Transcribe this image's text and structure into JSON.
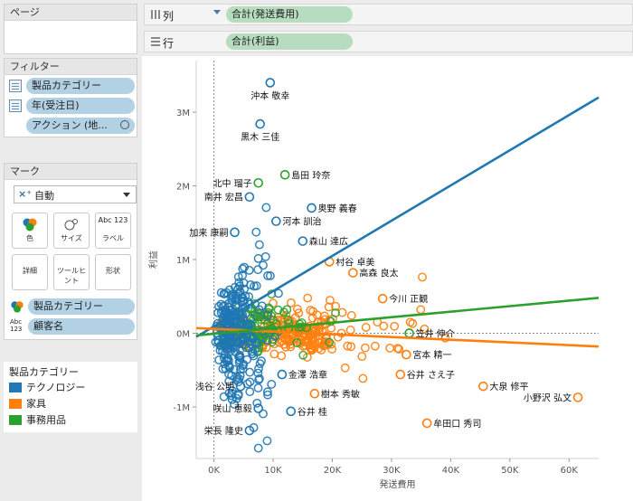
{
  "pages": {
    "title": "ページ"
  },
  "filters": {
    "title": "フィルター",
    "items": [
      {
        "label": "製品カテゴリー"
      },
      {
        "label": "年(受注日)"
      },
      {
        "label": "アクション (地..."
      }
    ]
  },
  "marks": {
    "title": "マーク",
    "mark_type": "自動",
    "buttons": [
      {
        "label": "色"
      },
      {
        "label": "サイズ"
      },
      {
        "label": "ラベル",
        "icon_text": "Abc 123"
      },
      {
        "label": "詳細"
      },
      {
        "label": "ツールヒント"
      },
      {
        "label": "形状"
      }
    ],
    "fields": [
      {
        "label": "製品カテゴリー"
      },
      {
        "label": "顧客名",
        "icon_text": "Abc 123"
      }
    ]
  },
  "legend": {
    "title": "製品カテゴリー",
    "items": [
      {
        "label": "テクノロジー",
        "color": "#1f77b4"
      },
      {
        "label": "家具",
        "color": "#ff7f0e"
      },
      {
        "label": "事務用品",
        "color": "#2ca02c"
      }
    ]
  },
  "shelves": {
    "columns": {
      "label": "列",
      "pill": "合計(発送費用)"
    },
    "rows": {
      "label": "行",
      "pill": "合計(利益)"
    }
  },
  "chart_data": {
    "type": "scatter",
    "xlabel": "発送費用",
    "ylabel": "利益",
    "xlim": [
      -3000,
      65000
    ],
    "ylim": [
      -1700000,
      3700000
    ],
    "x_ticks": [
      0,
      10000,
      20000,
      30000,
      40000,
      50000,
      60000
    ],
    "x_tick_labels": [
      "0K",
      "10K",
      "20K",
      "30K",
      "40K",
      "50K",
      "60K"
    ],
    "y_ticks": [
      -1000000,
      0,
      1000000,
      2000000,
      3000000
    ],
    "y_tick_labels": [
      "-1M",
      "0M",
      "1M",
      "2M",
      "3M"
    ],
    "series_colors": {
      "technology": "#1f77b4",
      "furniture": "#ff7f0e",
      "office": "#2ca02c"
    },
    "trend_lines": [
      {
        "category": "technology",
        "x": [
          -3000,
          65000
        ],
        "y": [
          -50000,
          3200000
        ]
      },
      {
        "category": "furniture",
        "x": [
          -3000,
          65000
        ],
        "y": [
          70000,
          -180000
        ]
      },
      {
        "category": "office",
        "x": [
          -3000,
          65000
        ],
        "y": [
          -30000,
          480000
        ]
      }
    ],
    "labeled_points": [
      {
        "name": "沖本 敬幸",
        "x": 9500,
        "y": 3400000,
        "category": "technology"
      },
      {
        "name": "黒木 三佳",
        "x": 7800,
        "y": 2840000,
        "category": "technology"
      },
      {
        "name": "北中 瑠子",
        "x": 7500,
        "y": 2040000,
        "category": "office"
      },
      {
        "name": "島田 玲奈",
        "x": 12000,
        "y": 2150000,
        "category": "office"
      },
      {
        "name": "南井 宏昌",
        "x": 6000,
        "y": 1850000,
        "category": "technology"
      },
      {
        "name": "奥野 義春",
        "x": 16500,
        "y": 1700000,
        "category": "technology"
      },
      {
        "name": "加来 康嗣",
        "x": 3500,
        "y": 1370000,
        "category": "technology"
      },
      {
        "name": "河本 訓治",
        "x": 10500,
        "y": 1520000,
        "category": "technology"
      },
      {
        "name": "森山 達広",
        "x": 15000,
        "y": 1250000,
        "category": "technology"
      },
      {
        "name": "村谷 卓美",
        "x": 19500,
        "y": 970000,
        "category": "furniture"
      },
      {
        "name": "高森 良太",
        "x": 23500,
        "y": 820000,
        "category": "furniture"
      },
      {
        "name": "今川 正観",
        "x": 28500,
        "y": 470000,
        "category": "furniture"
      },
      {
        "name": "笠井 伸介",
        "x": 33000,
        "y": 0,
        "category": "office"
      },
      {
        "name": "宮本 精一",
        "x": 32500,
        "y": -290000,
        "category": "furniture"
      },
      {
        "name": "金澤 浩章",
        "x": 11500,
        "y": -560000,
        "category": "technology"
      },
      {
        "name": "谷井 さえ子",
        "x": 31500,
        "y": -560000,
        "category": "furniture"
      },
      {
        "name": "浅谷 公明",
        "x": 4500,
        "y": -720000,
        "category": "technology"
      },
      {
        "name": "樹本 秀敏",
        "x": 17000,
        "y": -820000,
        "category": "furniture"
      },
      {
        "name": "大泉 修平",
        "x": 45500,
        "y": -720000,
        "category": "furniture"
      },
      {
        "name": "小野沢 弘文",
        "x": 61500,
        "y": -870000,
        "category": "furniture"
      },
      {
        "name": "咲山 恵毅",
        "x": 7500,
        "y": -1020000,
        "category": "technology"
      },
      {
        "name": "谷井 桂",
        "x": 13000,
        "y": -1060000,
        "category": "technology"
      },
      {
        "name": "栄長 隆史",
        "x": 6000,
        "y": -1320000,
        "category": "technology"
      },
      {
        "name": "牟田口 秀司",
        "x": 36000,
        "y": -1220000,
        "category": "furniture"
      }
    ]
  }
}
